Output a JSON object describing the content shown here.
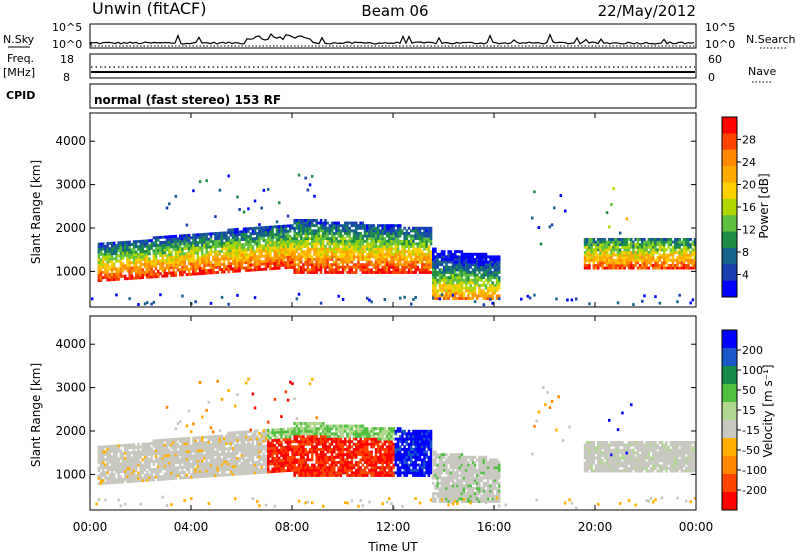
{
  "header": {
    "station": "Unwin (fitACF)",
    "beam": "Beam 06",
    "date": "22/May/2012"
  },
  "top_panels": {
    "nsky_label": "N.Sky",
    "nsky_ticks": [
      "10^5",
      "10^0"
    ],
    "nsearch_label": "N.Search",
    "nsearch_ticks": [
      "10^5",
      "10^0"
    ],
    "freq_label": "Freq.",
    "freq_unit": "[MHz]",
    "freq_ticks": [
      "18",
      "8"
    ],
    "nave_label": "Nave",
    "nave_ticks": [
      "60",
      "0"
    ],
    "cpid_label": "CPID",
    "cpid_text": "normal (fast stereo) 153 RF"
  },
  "chart_data": [
    {
      "type": "heatmap",
      "panel": "power",
      "ylabel": "Slant Range [km]",
      "yticks": [
        "1000",
        "2000",
        "3000",
        "4000"
      ],
      "ylim": [
        180,
        4650
      ],
      "xlim_hours": [
        0,
        24
      ],
      "colorbar": {
        "label": "Power [dB]",
        "ticks": [
          "28",
          "24",
          "20",
          "16",
          "12",
          "8",
          "4"
        ],
        "colors": [
          "#ff0000",
          "#ff4400",
          "#ff8800",
          "#ffaa00",
          "#ffd000",
          "#b0d800",
          "#60c040",
          "#1e8e46",
          "#16648a",
          "#1840b0",
          "#0000ff"
        ]
      },
      "regions": [
        {
          "t": [
            0.3,
            8.0
          ],
          "r": [
            700,
            2000
          ],
          "value": "mixed 12-28 dB"
        },
        {
          "t": [
            8.0,
            13.5
          ],
          "r": [
            900,
            2300
          ],
          "value": "mixed 16-28 dB"
        },
        {
          "t": [
            13.5,
            16.0
          ],
          "r": [
            300,
            1500
          ],
          "value": "mixed 4-20 dB"
        },
        {
          "t": [
            17.5,
            19.0
          ],
          "r": [
            1200,
            3000
          ],
          "value": "sparse 4-12 dB"
        },
        {
          "t": [
            19.5,
            24.0
          ],
          "r": [
            1000,
            1800
          ],
          "value": "mixed 12-24 dB"
        }
      ]
    },
    {
      "type": "heatmap",
      "panel": "velocity",
      "ylabel": "Slant Range [km]",
      "yticks": [
        "1000",
        "2000",
        "3000",
        "4000"
      ],
      "ylim": [
        180,
        4650
      ],
      "xlim_hours": [
        0,
        24
      ],
      "xticks": [
        "00:00",
        "04:00",
        "08:00",
        "12:00",
        "16:00",
        "20:00",
        "00:00"
      ],
      "xlabel": "Time UT",
      "colorbar": {
        "label": "Velocity [m s⁻¹]",
        "ticks": [
          "200",
          "100",
          "50",
          "15",
          "-15",
          "-50",
          "-100",
          "-200"
        ],
        "colors": [
          "#0000ff",
          "#1a58c8",
          "#178c46",
          "#50c040",
          "#b0d890",
          "#c8c8c0",
          "#ffb000",
          "#ff8800",
          "#ff4400",
          "#ff0000"
        ]
      },
      "regions": [
        {
          "t": [
            0.3,
            7.0
          ],
          "r": [
            700,
            2000
          ],
          "value": "ground scatter"
        },
        {
          "t": [
            6.5,
            8.0
          ],
          "r": [
            1900,
            3200
          ],
          "value": "-100 to -200 m/s"
        },
        {
          "t": [
            8.0,
            12.0
          ],
          "r": [
            900,
            1600
          ],
          "value": "-100 to -200 m/s"
        },
        {
          "t": [
            12.0,
            13.5
          ],
          "r": [
            1000,
            1900
          ],
          "value": "100 to 200 m/s"
        },
        {
          "t": [
            13.5,
            16.5
          ],
          "r": [
            300,
            1200
          ],
          "value": "ground scatter"
        },
        {
          "t": [
            20.5,
            21.5
          ],
          "r": [
            1300,
            2900
          ],
          "value": "100 to 200 m/s"
        },
        {
          "t": [
            19.5,
            24.0
          ],
          "r": [
            1000,
            1800
          ],
          "value": "ground scatter"
        }
      ]
    }
  ]
}
